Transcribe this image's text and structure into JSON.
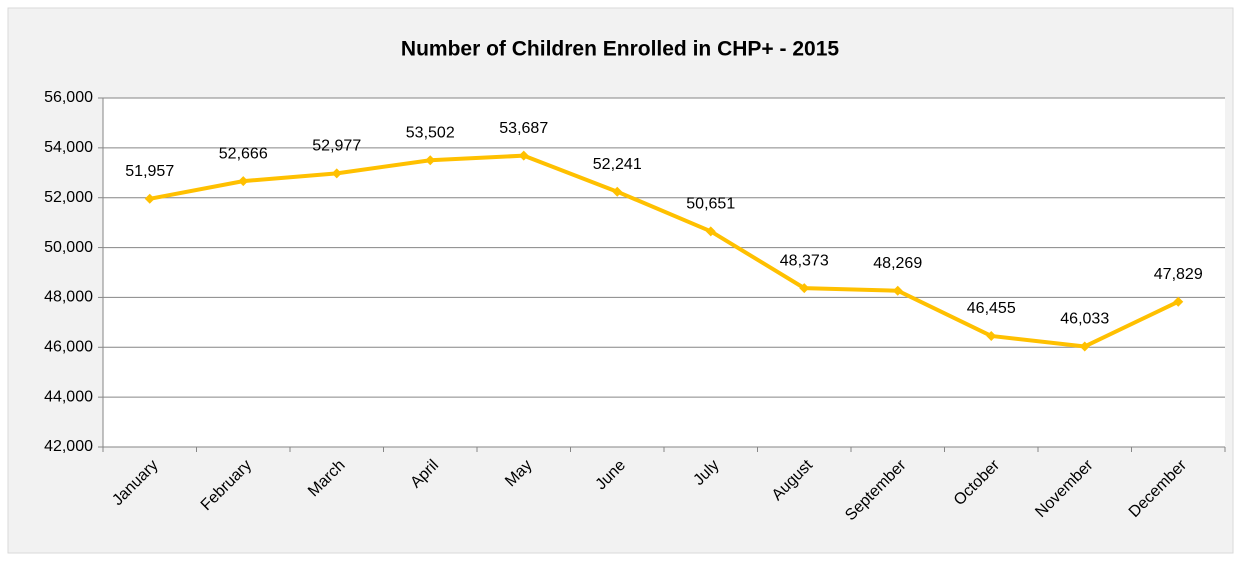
{
  "chart_data": {
    "type": "line",
    "title": "Number of Children Enrolled in CHP+ - 2015",
    "categories": [
      "January",
      "February",
      "March",
      "April",
      "May",
      "June",
      "July",
      "August",
      "September",
      "October",
      "November",
      "December"
    ],
    "series": [
      {
        "name": "Number of Children Enrolled",
        "color": "#ffc000",
        "values": [
          51957,
          52666,
          52977,
          53502,
          53687,
          52241,
          50651,
          48373,
          48269,
          46455,
          46033,
          47829
        ],
        "value_labels": [
          "51,957",
          "52,666",
          "52,977",
          "53,502",
          "53,687",
          "52,241",
          "50,651",
          "48,373",
          "48,269",
          "46,455",
          "46,033",
          "47,829"
        ]
      }
    ],
    "ylim": [
      42000,
      56000
    ],
    "yticks": [
      {
        "value": 42000,
        "label": "42,000"
      },
      {
        "value": 44000,
        "label": "44,000"
      },
      {
        "value": 46000,
        "label": "46,000"
      },
      {
        "value": 48000,
        "label": "48,000"
      },
      {
        "value": 50000,
        "label": "50,000"
      },
      {
        "value": 52000,
        "label": "52,000"
      },
      {
        "value": 54000,
        "label": "54,000"
      },
      {
        "value": 56000,
        "label": "56,000"
      }
    ],
    "grid": true
  }
}
